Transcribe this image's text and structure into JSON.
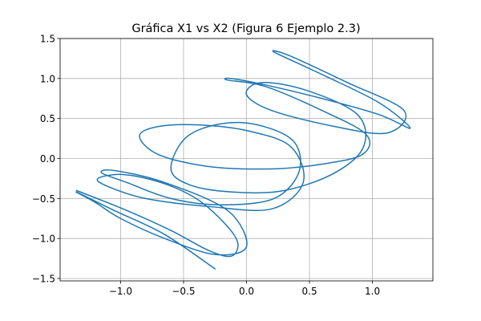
{
  "chart_data": {
    "type": "line",
    "title": "Gráfica X1 vs X2 (Figura 6 Ejemplo 2.3)",
    "xlabel": "",
    "ylabel": "",
    "xlim": [
      -1.48,
      1.48
    ],
    "ylim": [
      -1.53,
      1.5
    ],
    "grid": true,
    "x_ticks": [
      {
        "value": -1.0,
        "label": "−1.0"
      },
      {
        "value": -0.5,
        "label": "−0.5"
      },
      {
        "value": 0.0,
        "label": "0.0"
      },
      {
        "value": 0.5,
        "label": "0.5"
      },
      {
        "value": 1.0,
        "label": "1.0"
      }
    ],
    "y_ticks": [
      {
        "value": -1.5,
        "label": "−1.5"
      },
      {
        "value": -1.0,
        "label": "−1.0"
      },
      {
        "value": -0.5,
        "label": "−0.5"
      },
      {
        "value": 0.0,
        "label": "0.0"
      },
      {
        "value": 0.5,
        "label": "0.5"
      },
      {
        "value": 1.0,
        "label": "1.0"
      },
      {
        "value": 1.5,
        "label": "1.5"
      }
    ],
    "series": [
      {
        "color": "#1f77b4",
        "x": [
          -1.35,
          -0.95,
          -0.6,
          -0.3,
          -0.12,
          -0.07,
          -0.18,
          -0.4,
          -0.68,
          -0.98,
          -1.18,
          -1.1,
          -0.8,
          -0.3,
          0.2,
          0.45,
          0.35,
          0.0,
          -0.38,
          -0.7,
          -0.85,
          -0.7,
          -0.3,
          0.2,
          0.6,
          0.92,
          0.95,
          0.6,
          0.15,
          -0.15,
          -0.12,
          0.15,
          0.6,
          1.05,
          1.3,
          1.05,
          0.6,
          0.22,
          0.35,
          0.8,
          1.25,
          1.12,
          0.7,
          0.2,
          0.0,
          0.12,
          0.48,
          0.88,
          0.93,
          0.7,
          0.3,
          -0.1,
          -0.45,
          -0.6,
          -0.45,
          -0.05,
          0.35,
          0.42,
          0.22,
          -0.2,
          -0.6,
          -0.95,
          -1.15,
          -1.05,
          -0.65,
          -0.15,
          0.0,
          -0.25,
          -0.65,
          -1.0,
          -1.2,
          -1.35,
          -1.05,
          -0.65,
          -0.25
        ],
        "y": [
          -0.4,
          -0.65,
          -0.9,
          -1.15,
          -1.22,
          -1.05,
          -0.8,
          -0.5,
          -0.3,
          -0.2,
          -0.25,
          -0.35,
          -0.5,
          -0.6,
          -0.63,
          -0.3,
          0.15,
          0.35,
          0.42,
          0.4,
          0.28,
          0.05,
          -0.1,
          -0.13,
          -0.07,
          0.05,
          0.3,
          0.6,
          0.9,
          0.98,
          1.0,
          0.92,
          0.75,
          0.55,
          0.38,
          0.7,
          1.05,
          1.33,
          1.28,
          0.95,
          0.6,
          0.32,
          0.4,
          0.6,
          0.8,
          0.95,
          0.85,
          0.55,
          0.15,
          -0.18,
          -0.4,
          -0.42,
          -0.33,
          -0.12,
          0.3,
          0.45,
          0.25,
          -0.15,
          -0.5,
          -0.58,
          -0.5,
          -0.3,
          -0.18,
          -0.15,
          -0.3,
          -0.65,
          -1.1,
          -1.2,
          -1.0,
          -0.75,
          -0.55,
          -0.42,
          -0.65,
          -0.95,
          -1.38
        ]
      }
    ]
  }
}
